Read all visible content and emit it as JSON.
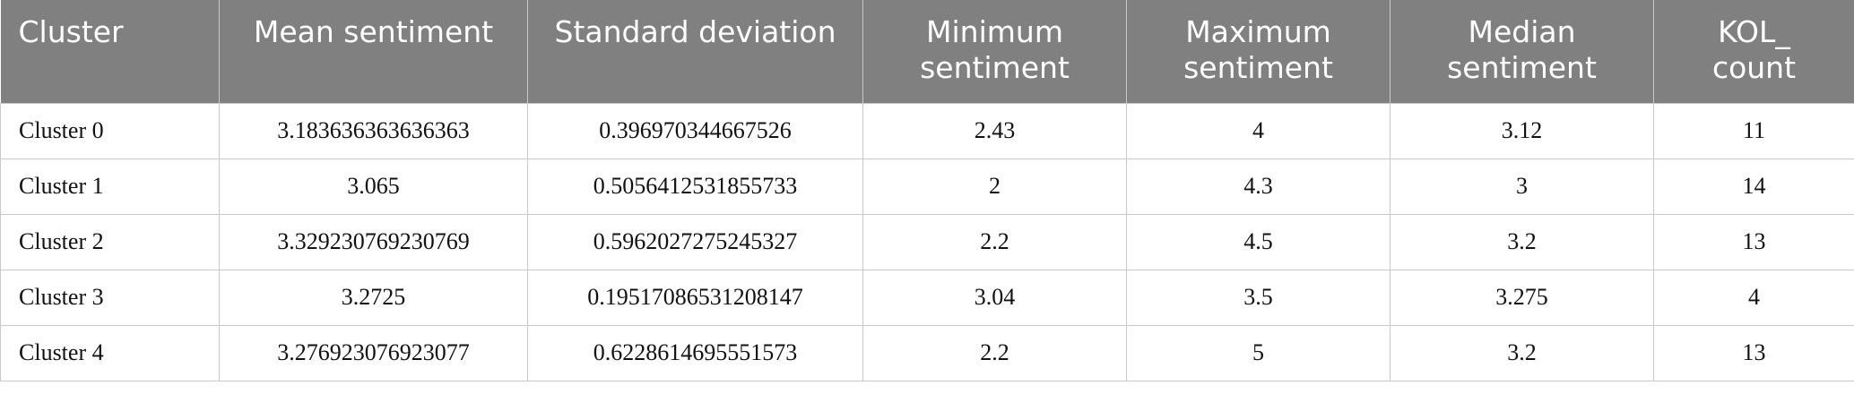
{
  "table": {
    "header": [
      "Cluster",
      "Mean sentiment",
      "Standard deviation",
      "Minimum sentiment",
      "Maximum sentiment",
      "Median sentiment",
      "KOL_ count"
    ],
    "rows": [
      [
        "Cluster 0",
        "3.183636363636363",
        "0.396970344667526",
        "2.43",
        "4",
        "3.12",
        "11"
      ],
      [
        "Cluster 1",
        "3.065",
        "0.5056412531855733",
        "2",
        "4.3",
        "3",
        "14"
      ],
      [
        "Cluster 2",
        "3.329230769230769",
        "0.5962027275245327",
        "2.2",
        "4.5",
        "3.2",
        "13"
      ],
      [
        "Cluster 3",
        "3.2725",
        "0.19517086531208147",
        "3.04",
        "3.5",
        "3.275",
        "4"
      ],
      [
        "Cluster 4",
        "3.276923076923077",
        "0.6228614695551573",
        "2.2",
        "5",
        "3.2",
        "13"
      ]
    ]
  }
}
